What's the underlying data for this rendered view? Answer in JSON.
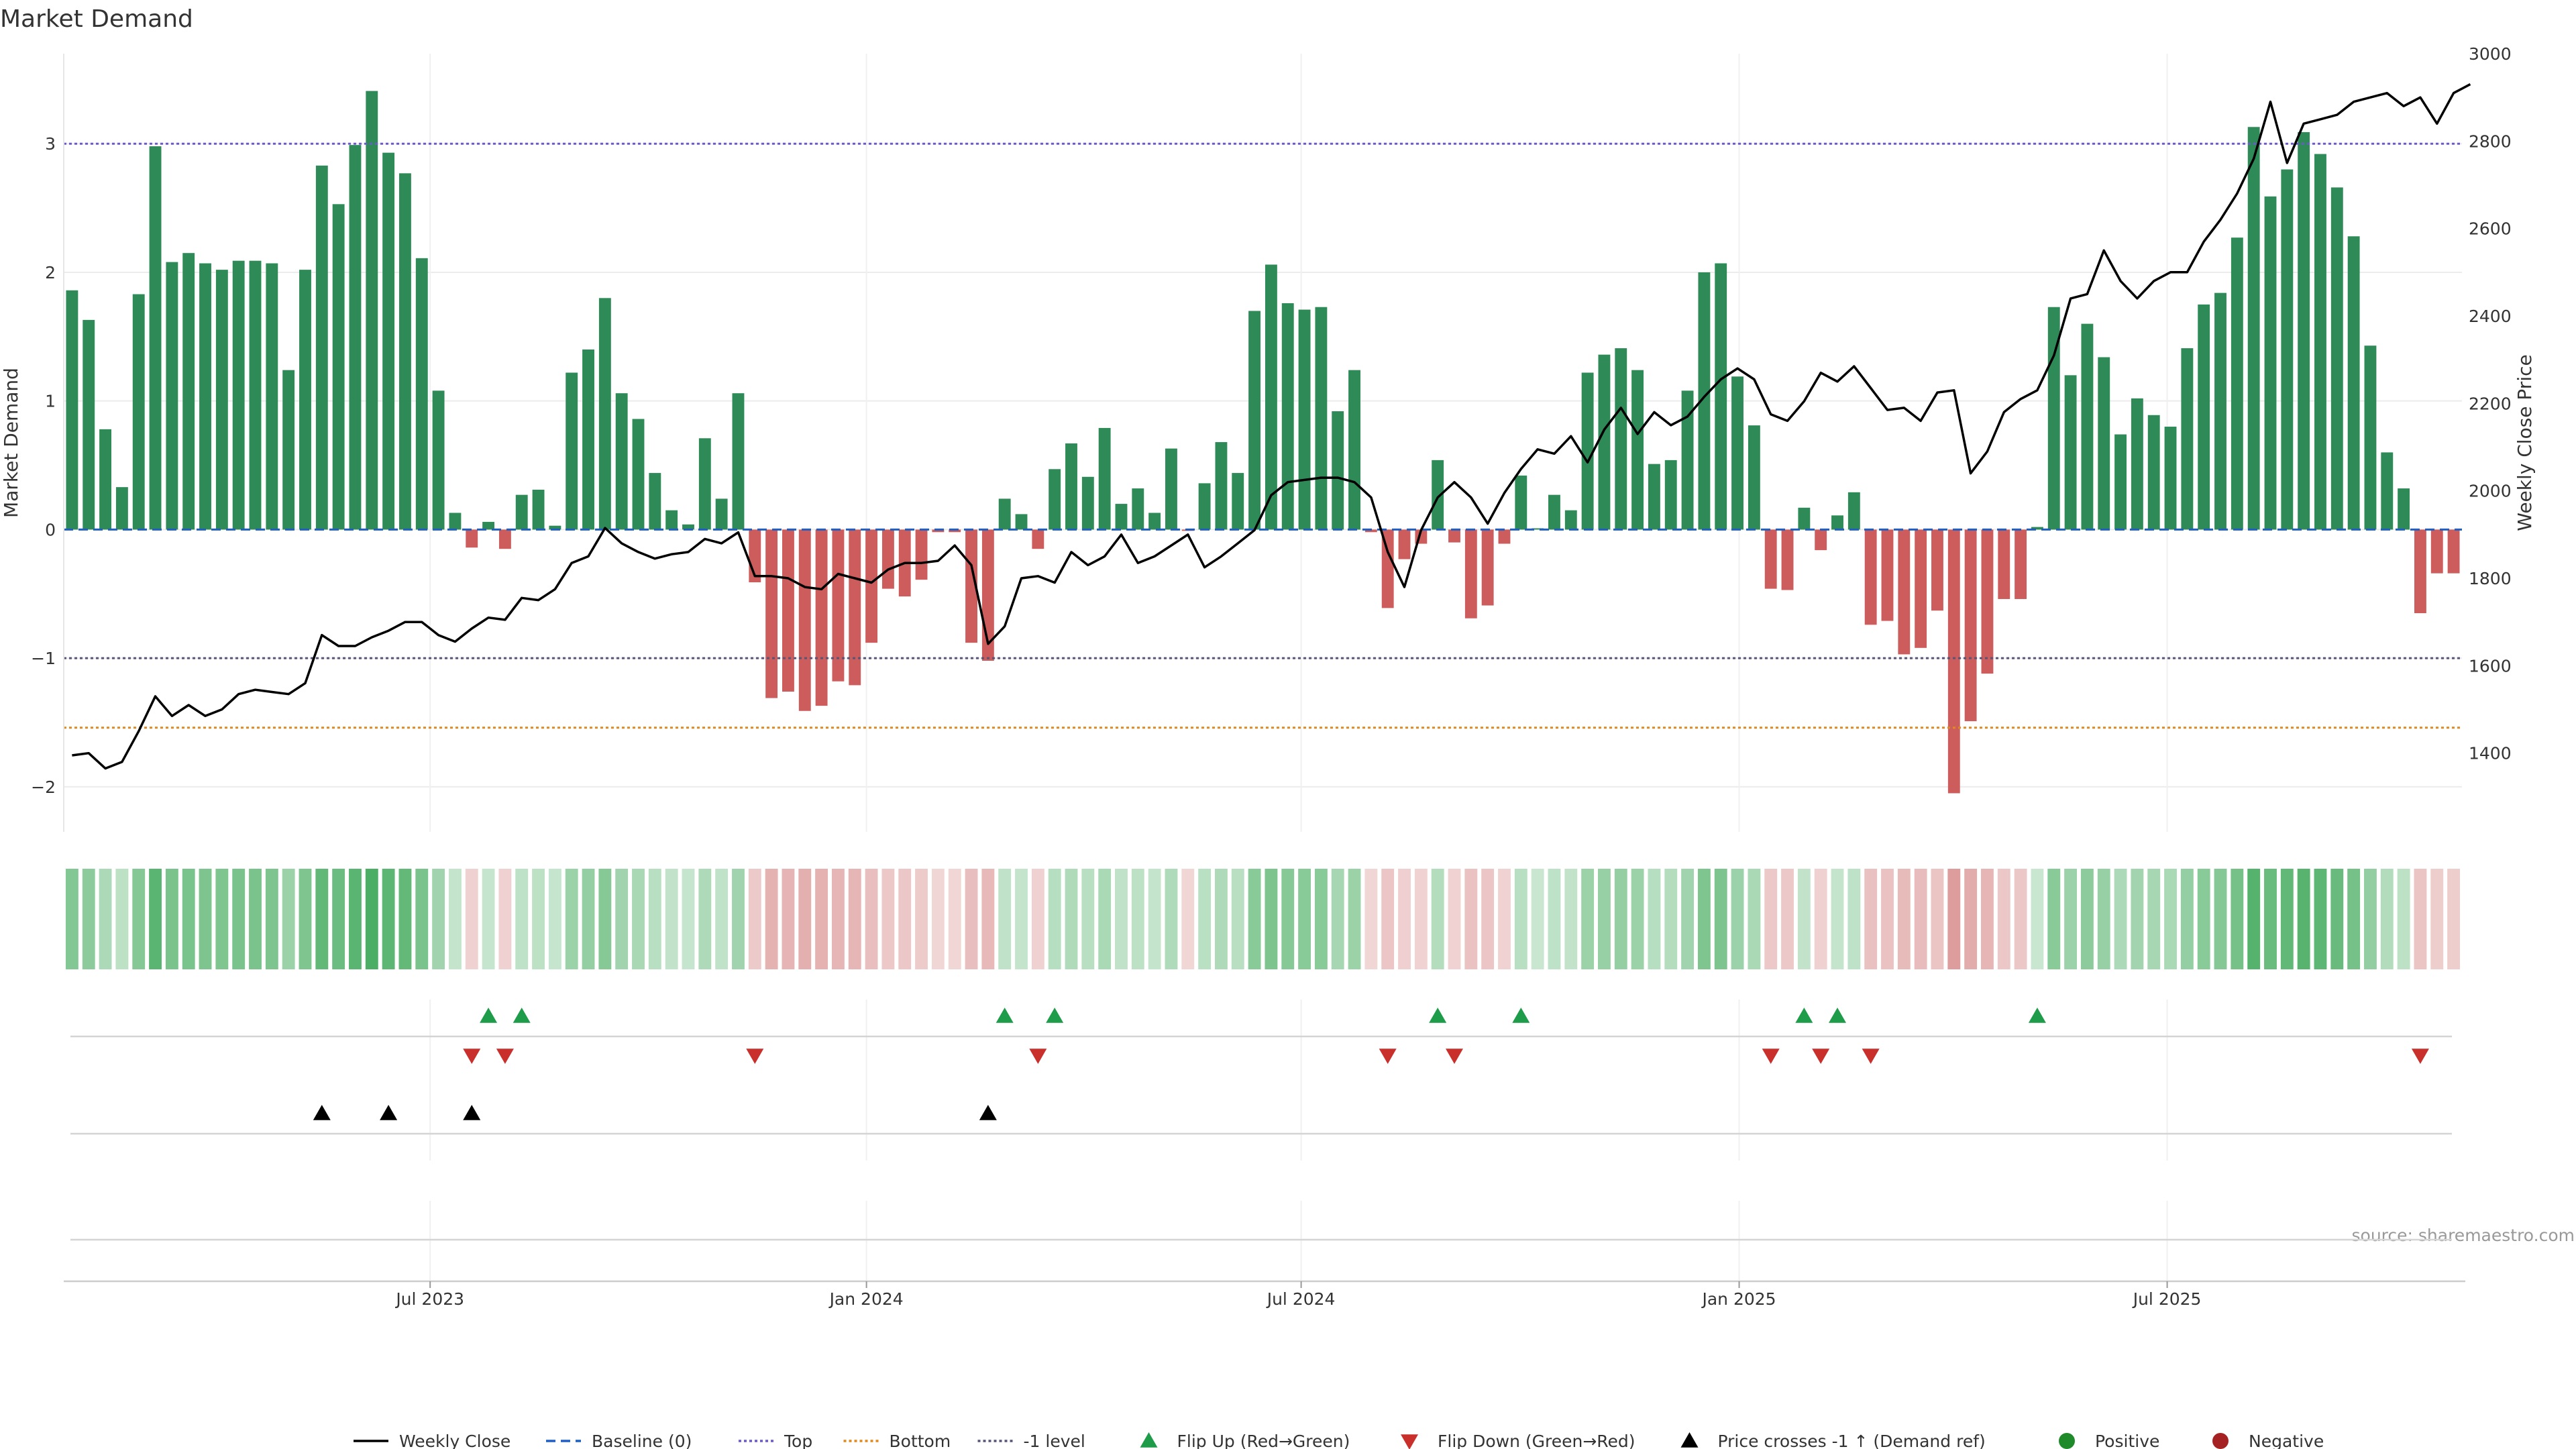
{
  "chart_data": {
    "type": "bar",
    "title": "Market Demand",
    "ylabel": "Market Demand",
    "y2label": "Weekly Close Price",
    "source": "source: sharemaestro.com",
    "ylim": [
      -2.35,
      3.7
    ],
    "y2lim": [
      1220,
      3000
    ],
    "yticks": [
      3,
      2,
      1,
      0,
      -1,
      -2
    ],
    "y2ticks": [
      3000,
      2800,
      2600,
      2400,
      2200,
      2000,
      1800,
      1600,
      1400
    ],
    "xticks": [
      {
        "label": "Jul 2023",
        "index": 22
      },
      {
        "label": "Jan 2024",
        "index": 48.2
      },
      {
        "label": "Jul 2024",
        "index": 74.3
      },
      {
        "label": "Jan 2025",
        "index": 100.6
      },
      {
        "label": "Jul 2025",
        "index": 126.3
      }
    ],
    "levels": {
      "top": 3.0,
      "bottom": -1.54,
      "minus_one": -1.0,
      "baseline": 0
    },
    "colors": {
      "positive": "#2e8b57",
      "negative": "#cd5c5c",
      "line": "#000000",
      "top": "#6a5acd",
      "bottom": "#e08a1e",
      "minus_one": "#555577",
      "baseline": "#1f5fbf",
      "flip_up": "#1e9c4a",
      "flip_down": "#c9302c",
      "cross": "#000000"
    },
    "grid": true,
    "legend_position": "bottom",
    "series": [
      {
        "name": "Market Demand",
        "values": [
          1.86,
          1.63,
          0.78,
          0.33,
          1.83,
          2.98,
          2.08,
          2.15,
          2.07,
          2.02,
          2.09,
          2.09,
          2.07,
          1.24,
          2.02,
          2.83,
          2.53,
          2.99,
          3.41,
          2.93,
          2.77,
          2.11,
          1.08,
          0.13,
          -0.14,
          0.06,
          -0.15,
          0.27,
          0.31,
          0.03,
          1.22,
          1.4,
          1.8,
          1.06,
          0.86,
          0.44,
          0.15,
          0.04,
          0.71,
          0.24,
          1.06,
          -0.41,
          -1.31,
          -1.26,
          -1.41,
          -1.37,
          -1.18,
          -1.21,
          -0.88,
          -0.46,
          -0.52,
          -0.39,
          -0.02,
          -0.02,
          -0.88,
          -1.02,
          0.24,
          0.12,
          -0.15,
          0.47,
          0.67,
          0.41,
          0.79,
          0.2,
          0.32,
          0.13,
          0.63,
          -0.01,
          0.36,
          0.68,
          0.44,
          1.7,
          2.06,
          1.76,
          1.71,
          1.73,
          0.92,
          1.24,
          -0.02,
          -0.61,
          -0.23,
          -0.11,
          0.54,
          -0.1,
          -0.69,
          -0.59,
          -0.11,
          0.42,
          0.01,
          0.27,
          0.15,
          1.22,
          1.36,
          1.41,
          1.24,
          0.51,
          0.54,
          1.08,
          2.0,
          2.07,
          1.19,
          0.81,
          -0.46,
          -0.47,
          0.17,
          -0.16,
          0.11,
          0.29,
          -0.74,
          -0.71,
          -0.97,
          -0.92,
          -0.63,
          -2.05,
          -1.49,
          -1.12,
          -0.54,
          -0.54,
          0.02,
          1.73,
          1.2,
          1.6,
          1.34,
          0.74,
          1.02,
          0.89,
          0.8,
          1.41,
          1.75,
          1.84,
          2.27,
          3.13,
          2.59,
          2.8,
          3.09,
          2.92,
          2.66,
          2.28,
          1.43,
          0.6,
          0.32,
          -0.65,
          -0.34,
          -0.34
        ]
      },
      {
        "name": "Weekly Close",
        "values": [
          1395,
          1400,
          1365,
          1380,
          1450,
          1530,
          1485,
          1510,
          1485,
          1500,
          1535,
          1545,
          1540,
          1535,
          1560,
          1670,
          1645,
          1645,
          1665,
          1680,
          1700,
          1700,
          1670,
          1655,
          1685,
          1710,
          1705,
          1755,
          1750,
          1775,
          1835,
          1850,
          1915,
          1880,
          1860,
          1845,
          1855,
          1860,
          1890,
          1880,
          1905,
          1805,
          1805,
          1800,
          1780,
          1775,
          1810,
          1800,
          1790,
          1820,
          1835,
          1835,
          1840,
          1875,
          1830,
          1650,
          1690,
          1800,
          1805,
          1790,
          1860,
          1830,
          1850,
          1900,
          1835,
          1850,
          1875,
          1900,
          1825,
          1850,
          1880,
          1910,
          1990,
          2020,
          2025,
          2030,
          2030,
          2020,
          1985,
          1860,
          1780,
          1910,
          1985,
          2020,
          1985,
          1925,
          1995,
          2050,
          2095,
          2085,
          2125,
          2065,
          2140,
          2190,
          2130,
          2180,
          2150,
          2170,
          2215,
          2255,
          2280,
          2255,
          2175,
          2160,
          2205,
          2270,
          2250,
          2285,
          2235,
          2185,
          2190,
          2160,
          2225,
          2230,
          2040,
          2090,
          2180,
          2210,
          2230,
          2310,
          2440,
          2450,
          2550,
          2480,
          2440,
          2480,
          2500,
          2500,
          2570,
          2620,
          2680,
          2760,
          2890,
          2750,
          2840,
          2850,
          2860,
          2890,
          2900,
          2910,
          2880,
          2900,
          2840,
          2910,
          2930
        ]
      },
      {
        "name": "Baseline (0)",
        "values": [
          0
        ]
      },
      {
        "name": "Top",
        "values": [
          3.0
        ]
      },
      {
        "name": "Bottom",
        "values": [
          -1.54
        ]
      },
      {
        "name": "-1 level",
        "values": [
          -1.0
        ]
      }
    ],
    "flip_up_indices": [
      25,
      27,
      56,
      59,
      82,
      87,
      104,
      106,
      118
    ],
    "flip_down_indices": [
      24,
      26,
      41,
      58,
      79,
      83,
      102,
      105,
      108,
      141
    ],
    "price_cross_indices": [
      15,
      19,
      24,
      55
    ],
    "legend": [
      {
        "label": "Weekly Close",
        "kind": "line",
        "color": "#000000"
      },
      {
        "label": "Baseline (0)",
        "kind": "dash",
        "color": "#1f5fbf"
      },
      {
        "label": "Top",
        "kind": "dot",
        "color": "#6a5acd"
      },
      {
        "label": "Bottom",
        "kind": "dot",
        "color": "#e08a1e"
      },
      {
        "label": "-1 level",
        "kind": "dot",
        "color": "#555577"
      },
      {
        "label": "Flip Up (Red→Green)",
        "kind": "tri-up",
        "color": "#1e9c4a"
      },
      {
        "label": "Flip Down (Green→Red)",
        "kind": "tri-down",
        "color": "#c9302c"
      },
      {
        "label": "Price crosses -1 ↑ (Demand ref)",
        "kind": "tri-up",
        "color": "#000000"
      },
      {
        "label": "Positive",
        "kind": "circle",
        "color": "#1e8a2a"
      },
      {
        "label": "Negative",
        "kind": "circle",
        "color": "#a52222"
      }
    ]
  }
}
